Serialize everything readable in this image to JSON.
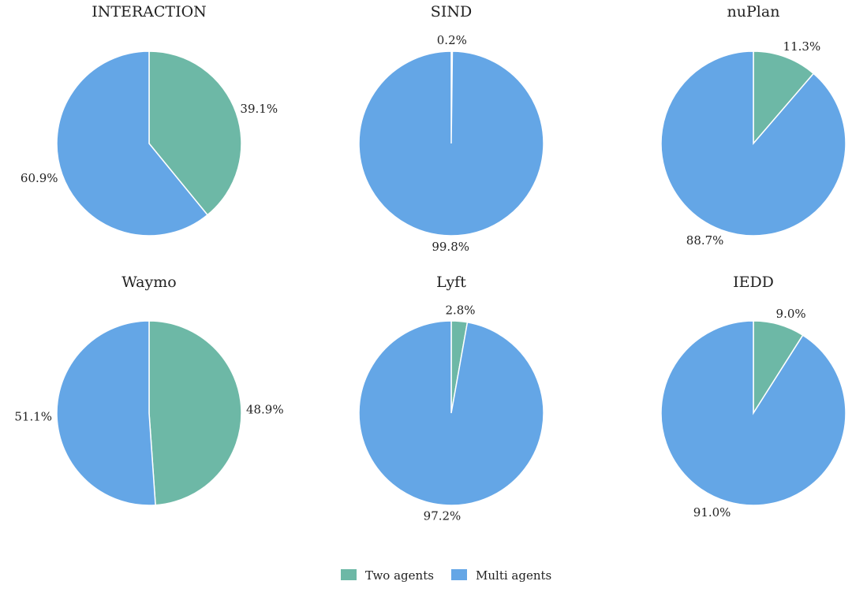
{
  "chart_data": [
    {
      "type": "pie",
      "title": "INTERACTION",
      "categories": [
        "Two agents",
        "Multi agents"
      ],
      "values": [
        39.1,
        60.9
      ],
      "labels": [
        "39.1%",
        "60.9%"
      ]
    },
    {
      "type": "pie",
      "title": "SIND",
      "categories": [
        "Two agents",
        "Multi agents"
      ],
      "values": [
        0.2,
        99.8
      ],
      "labels": [
        "0.2%",
        "99.8%"
      ]
    },
    {
      "type": "pie",
      "title": "nuPlan",
      "categories": [
        "Two agents",
        "Multi agents"
      ],
      "values": [
        11.3,
        88.7
      ],
      "labels": [
        "11.3%",
        "88.7%"
      ]
    },
    {
      "type": "pie",
      "title": "Waymo",
      "categories": [
        "Two agents",
        "Multi agents"
      ],
      "values": [
        48.9,
        51.1
      ],
      "labels": [
        "48.9%",
        "51.1%"
      ]
    },
    {
      "type": "pie",
      "title": "Lyft",
      "categories": [
        "Two agents",
        "Multi agents"
      ],
      "values": [
        2.8,
        97.2
      ],
      "labels": [
        "2.8%",
        "97.2%"
      ]
    },
    {
      "type": "pie",
      "title": "IEDD",
      "categories": [
        "Two agents",
        "Multi agents"
      ],
      "values": [
        9.0,
        91.0
      ],
      "labels": [
        "9.0%",
        "91.0%"
      ]
    }
  ],
  "legend": {
    "placement": "bottom-center",
    "items": [
      {
        "label": "Two agents",
        "color": "#6db8a6"
      },
      {
        "label": "Multi agents",
        "color": "#64a6e6"
      }
    ]
  }
}
